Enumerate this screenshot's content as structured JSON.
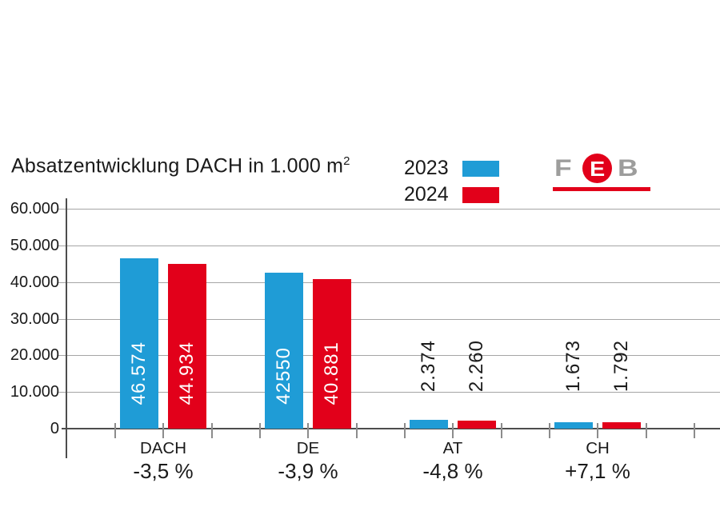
{
  "title": {
    "text": "Absatzentwicklung DACH in 1.000 m",
    "sup": "2"
  },
  "legend": {
    "items": [
      {
        "label": "2023",
        "color": "#1F9CD6"
      },
      {
        "label": "2024",
        "color": "#E2001A"
      }
    ]
  },
  "logo": {
    "f": "F",
    "e": "E",
    "b": "B",
    "gray": "#9D9D9C",
    "red": "#E2001A"
  },
  "colors": {
    "series_2023": "#1F9CD6",
    "series_2024": "#E2001A",
    "gridline": "#A5A5A5",
    "axis": "#4D4D4D",
    "text": "#1A1A1A"
  },
  "chart_data": {
    "type": "bar",
    "title": "Absatzentwicklung DACH in 1.000 m²",
    "categories": [
      "DACH",
      "DE",
      "AT",
      "CH"
    ],
    "series": [
      {
        "name": "2023",
        "color": "#1F9CD6",
        "values": [
          46574,
          42550,
          2374,
          1673
        ],
        "value_labels": [
          "46.574",
          "42550",
          "2.374",
          "1.673"
        ]
      },
      {
        "name": "2024",
        "color": "#E2001A",
        "values": [
          44934,
          40881,
          2260,
          1792
        ],
        "value_labels": [
          "44.934",
          "40.881",
          "2.260",
          "1.792"
        ]
      }
    ],
    "change_labels": [
      "-3,5 %",
      "-3,9 %",
      "-4,8 %",
      "+7,1 %"
    ],
    "y_tick_values": [
      60000,
      50000,
      40000,
      30000,
      20000,
      10000,
      0
    ],
    "y_tick_labels": [
      "60.000",
      "50.000",
      "40.000",
      "30.000",
      "20.000",
      "10.000",
      "0"
    ],
    "ylim": [
      0,
      60000
    ],
    "xlabel": "",
    "ylabel": "",
    "grid": true,
    "legend_position": "top"
  }
}
